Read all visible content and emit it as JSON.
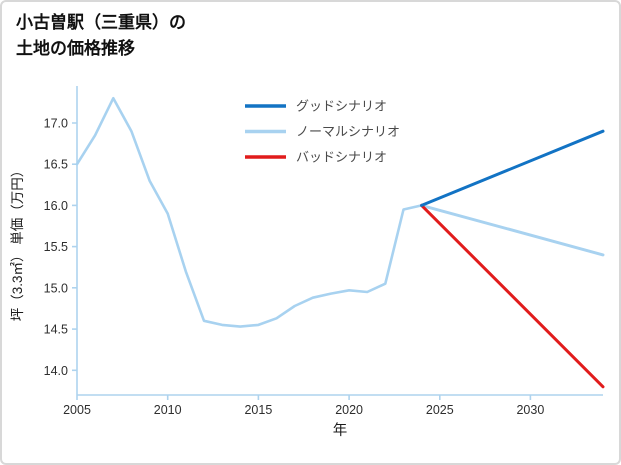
{
  "title": {
    "line1": "小古曽駅（三重県）の",
    "line2": "土地の価格推移"
  },
  "chart_data": {
    "type": "line",
    "title": "小古曽駅（三重県）の土地の価格推移",
    "xlabel": "年",
    "ylabel": "坪（3.3㎡） 単価（万円）",
    "xlim": [
      2005,
      2034
    ],
    "ylim": [
      13.7,
      17.4
    ],
    "xticks": [
      2005,
      2010,
      2015,
      2020,
      2025,
      2030
    ],
    "yticks": [
      14.0,
      14.5,
      15.0,
      15.5,
      16.0,
      16.5,
      17.0
    ],
    "grid": false,
    "axis_color": "#aed3ee",
    "tick_label_color": "#2e2e2e",
    "legend_position": "top-center",
    "legend": [
      {
        "label": "グッドシナリオ",
        "color": "#1273c4"
      },
      {
        "label": "ノーマルシナリオ",
        "color": "#a8d2f0"
      },
      {
        "label": "バッドシナリオ",
        "color": "#e11c1c"
      }
    ],
    "series": [
      {
        "name": "historical",
        "color": "#a8d2f0",
        "width": 2.6,
        "x": [
          2005,
          2006,
          2007,
          2008,
          2009,
          2010,
          2011,
          2012,
          2013,
          2014,
          2015,
          2016,
          2017,
          2018,
          2019,
          2020,
          2021,
          2022,
          2023,
          2024
        ],
        "y": [
          16.5,
          16.85,
          17.3,
          16.9,
          16.3,
          15.9,
          15.2,
          14.6,
          14.55,
          14.53,
          14.55,
          14.63,
          14.78,
          14.88,
          14.93,
          14.97,
          14.95,
          15.05,
          15.95,
          16.0
        ]
      },
      {
        "name": "normal-scenario",
        "color": "#a8d2f0",
        "width": 3,
        "x": [
          2024,
          2034
        ],
        "y": [
          16.0,
          15.4
        ]
      },
      {
        "name": "bad-scenario",
        "color": "#e11c1c",
        "width": 3,
        "x": [
          2024,
          2034
        ],
        "y": [
          16.0,
          13.8
        ]
      },
      {
        "name": "good-scenario",
        "color": "#1273c4",
        "width": 3,
        "x": [
          2024,
          2034
        ],
        "y": [
          16.0,
          16.9
        ]
      }
    ]
  }
}
